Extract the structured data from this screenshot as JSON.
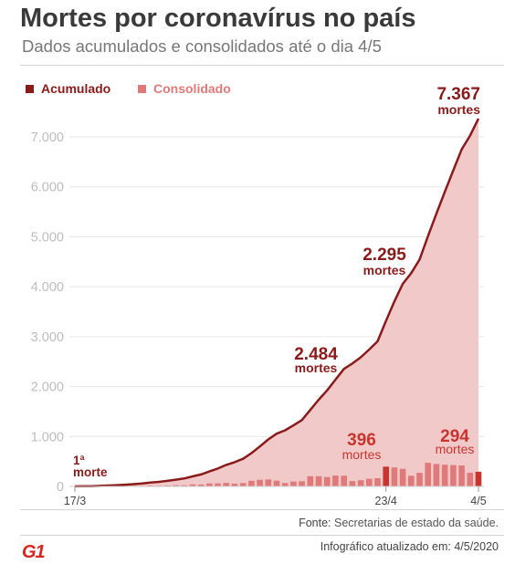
{
  "header": {
    "title": "Mortes por coronavírus no país",
    "subtitle": "Dados acumulados e consolidados até o dia 4/5"
  },
  "legend": {
    "cumulative_label": "Acumulado",
    "daily_label": "Consolidado"
  },
  "colors": {
    "cumulative_line": "#8b1a1a",
    "area_fill": "#f2c9c9",
    "bar": "#e07a7a",
    "bar_highlight": "#c8352f",
    "annotation": "#8b1a1a",
    "annotation_light": "#c8352f",
    "axis_text": "#bdbdbd",
    "grid": "#e6e6e6"
  },
  "chart_data": {
    "type": "area",
    "title": "Mortes por coronavírus no país",
    "ylim": [
      0,
      7367
    ],
    "yticks": [
      0,
      1000,
      2000,
      3000,
      4000,
      5000,
      6000,
      7000
    ],
    "ytick_labels": [
      "0",
      "1.000",
      "2.000",
      "3.000",
      "4.000",
      "5.000",
      "6.000",
      "7.000"
    ],
    "xtick_labels": [
      {
        "index": 0,
        "label": "17/3"
      },
      {
        "index": 37,
        "label": "23/4"
      },
      {
        "index": 48,
        "label": "4/5"
      }
    ],
    "series": [
      {
        "name": "Acumulado",
        "type": "line",
        "values": [
          1,
          4,
          6,
          11,
          18,
          25,
          34,
          46,
          59,
          77,
          92,
          111,
          136,
          159,
          201,
          240,
          299,
          359,
          431,
          486,
          553,
          667,
          800,
          941,
          1056,
          1124,
          1223,
          1328,
          1532,
          1736,
          1924,
          2141,
          2354,
          2462,
          2587,
          2741,
          2906,
          3313,
          3704,
          4057,
          4271,
          4543,
          5017,
          5466,
          5901,
          6329,
          6750,
          7025,
          7367
        ]
      },
      {
        "name": "Consolidado",
        "type": "bar",
        "values": [
          1,
          3,
          2,
          5,
          7,
          7,
          9,
          12,
          13,
          18,
          15,
          19,
          25,
          23,
          42,
          39,
          59,
          60,
          72,
          55,
          67,
          114,
          133,
          141,
          115,
          68,
          99,
          105,
          204,
          204,
          188,
          217,
          213,
          108,
          125,
          154,
          165,
          396,
          381,
          353,
          214,
          272,
          474,
          449,
          435,
          428,
          421,
          275,
          294
        ]
      }
    ],
    "highlight_bars": [
      37,
      48
    ],
    "annotations": [
      {
        "index": 0,
        "series": "Acumulado",
        "value": "1ª",
        "unit": "morte"
      },
      {
        "index": 32,
        "series": "Acumulado",
        "value": "2.484",
        "unit": "mortes"
      },
      {
        "index": 41,
        "series": "Acumulado",
        "value": "2.295",
        "unit": "mortes"
      },
      {
        "index": 48,
        "series": "Acumulado",
        "value": "7.367",
        "unit": "mortes"
      },
      {
        "index": 37,
        "series": "Consolidado",
        "value": "396",
        "unit": "mortes"
      },
      {
        "index": 48,
        "series": "Consolidado",
        "value": "294",
        "unit": "mortes"
      }
    ]
  },
  "footer": {
    "source_prefix": "Fonte:",
    "source_text": "Secretarias de estado da saúde.",
    "updated_label": "Infográfico atualizado em: 4/5/2020",
    "logo_text": "G1"
  }
}
